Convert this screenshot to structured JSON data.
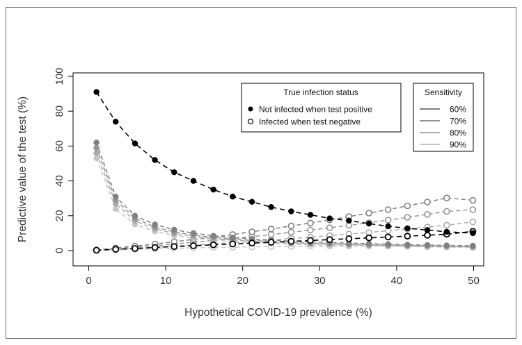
{
  "chart_data": {
    "type": "scatter",
    "xlabel": "Hypothetical COVID-19 prevalence (%)",
    "ylabel": "Predictive value of the test (%)",
    "xlim": [
      0,
      50
    ],
    "ylim": [
      0,
      100
    ],
    "xticks": [
      0,
      10,
      20,
      30,
      40,
      50
    ],
    "yticks": [
      0,
      20,
      40,
      60,
      80,
      100
    ],
    "grid": false,
    "x": [
      1,
      3.5,
      6,
      8.6,
      11.1,
      13.6,
      16.2,
      18.7,
      21.2,
      23.7,
      26.3,
      28.8,
      31.3,
      33.8,
      36.4,
      38.9,
      41.4,
      44,
      46.5,
      49.9
    ],
    "status_legend": {
      "title": "True infection status",
      "entries": [
        "Not infected when test positive",
        "Infected when test negative"
      ]
    },
    "sensitivity_legend": {
      "title": "Sensitivity",
      "entries": [
        "60%",
        "70%",
        "80%",
        "90%"
      ]
    },
    "series": [
      {
        "status": "Not infected when test positive",
        "sensitivity": "60%",
        "color": "#808080",
        "values": [
          62,
          31,
          20,
          15,
          12,
          10,
          8.5,
          7.5,
          6.7,
          6,
          5.5,
          5,
          4.6,
          4.3,
          4,
          3.7,
          3.4,
          3.2,
          3,
          2.8
        ]
      },
      {
        "status": "Not infected when test positive",
        "sensitivity": "70%",
        "color": "#959595",
        "values": [
          59,
          29,
          18.5,
          13.5,
          10.7,
          8.9,
          7.6,
          6.6,
          5.8,
          5.2,
          4.7,
          4.3,
          4,
          3.7,
          3.4,
          3.2,
          3,
          2.8,
          2.6,
          2.4
        ]
      },
      {
        "status": "Not infected when test positive",
        "sensitivity": "80%",
        "color": "#ababab",
        "values": [
          56,
          27,
          17,
          12.5,
          9.8,
          8.1,
          6.9,
          6,
          5.3,
          4.7,
          4.3,
          3.9,
          3.6,
          3.3,
          3.1,
          2.9,
          2.7,
          2.5,
          2.4,
          2.2
        ]
      },
      {
        "status": "Not infected when test positive",
        "sensitivity": "90%",
        "color": "#c6c6c6",
        "values": [
          53,
          24,
          15,
          11,
          8.7,
          7.1,
          6,
          5.2,
          4.6,
          4.1,
          3.7,
          3.4,
          3.1,
          2.9,
          2.7,
          2.5,
          2.3,
          2.2,
          2,
          1.9
        ]
      },
      {
        "status": "Infected when test negative",
        "sensitivity": "60%",
        "color": "#808080",
        "values": [
          0.4,
          1.5,
          2.6,
          3.8,
          5.1,
          6.4,
          7.8,
          9.2,
          10.8,
          12.4,
          14.1,
          15.8,
          17.6,
          19.5,
          21.5,
          23.5,
          25.7,
          27.9,
          30.2,
          28.9
        ]
      },
      {
        "status": "Infected when test negative",
        "sensitivity": "70%",
        "color": "#959595",
        "values": [
          0.3,
          1.1,
          1.9,
          2.8,
          3.8,
          4.8,
          5.8,
          6.9,
          8,
          9.2,
          10.5,
          11.8,
          13.1,
          14.5,
          16,
          17.5,
          19.1,
          20.8,
          22.5,
          23.5
        ]
      },
      {
        "status": "Infected when test negative",
        "sensitivity": "80%",
        "color": "#ababab",
        "values": [
          0.2,
          0.8,
          1.3,
          1.9,
          2.6,
          3.2,
          3.9,
          4.6,
          5.3,
          6.1,
          6.9,
          7.7,
          8.6,
          9.5,
          10.4,
          11.4,
          12.4,
          13.5,
          14.6,
          16.5
        ]
      },
      {
        "status": "Infected when test negative",
        "sensitivity": "90%",
        "color": "#c6c6c6",
        "values": [
          0.1,
          0.4,
          0.7,
          1,
          1.3,
          1.6,
          1.8,
          2,
          2.1,
          2.3,
          2.4,
          2.5,
          2.6,
          2.6,
          2.6,
          2.5,
          2.4,
          2.2,
          2,
          1.7
        ]
      },
      {
        "status": "Not infected when test positive",
        "sensitivity": "",
        "color": "#000000",
        "values": [
          91,
          74,
          61.5,
          52,
          45,
          40,
          35,
          31,
          28,
          25,
          22.5,
          20.5,
          18.5,
          17.2,
          15.5,
          14,
          12.8,
          11.8,
          10.8,
          10
        ]
      },
      {
        "status": "Infected when test negative",
        "sensitivity": "",
        "color": "#000000",
        "values": [
          0.2,
          0.7,
          1.2,
          1.8,
          2.3,
          2.8,
          3.3,
          3.8,
          4.3,
          4.8,
          5.3,
          5.8,
          6.3,
          6.8,
          7.3,
          7.8,
          8.3,
          8.8,
          9.4,
          11
        ]
      }
    ]
  }
}
